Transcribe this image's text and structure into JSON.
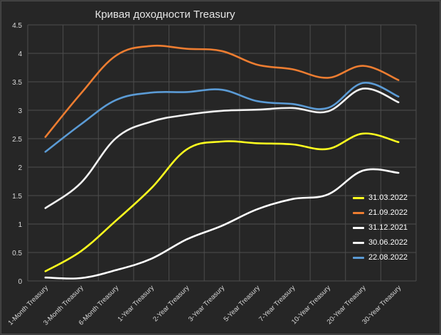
{
  "chart_data": {
    "type": "line",
    "title": "Кривая доходности Treasury",
    "categories": [
      "1-Month Treasury",
      "3-Month Treasury",
      "6-Month Treasury",
      "1-Year Treasury",
      "2-Year Treasury",
      "3-Year Treasury",
      "5-Year Treasury",
      "7-Year Treasury",
      "10-Year Treasury",
      "20-Year Treasury",
      "30-Year Treasury"
    ],
    "ylim": [
      0,
      4.5
    ],
    "yticks": [
      "0",
      "0.5",
      "1",
      "1.5",
      "2",
      "2.5",
      "3",
      "3.5",
      "4",
      "4.5"
    ],
    "grid": true,
    "legend_position": "bottom-right",
    "series": [
      {
        "name": "31.03.2022",
        "color": "#ffff1f",
        "values": [
          0.17,
          0.52,
          1.06,
          1.63,
          2.31,
          2.45,
          2.42,
          2.4,
          2.32,
          2.59,
          2.44
        ]
      },
      {
        "name": "21.09.2022",
        "color": "#ed7d31",
        "values": [
          2.53,
          3.29,
          3.96,
          4.13,
          4.08,
          4.04,
          3.8,
          3.72,
          3.57,
          3.78,
          3.53
        ]
      },
      {
        "name": "31.12.2021",
        "color": "#ffffff",
        "values": [
          0.06,
          0.05,
          0.19,
          0.39,
          0.73,
          0.97,
          1.26,
          1.44,
          1.52,
          1.94,
          1.9
        ]
      },
      {
        "name": "30.06.2022",
        "color": "#f2f2f2",
        "values": [
          1.28,
          1.72,
          2.51,
          2.8,
          2.92,
          2.99,
          3.01,
          3.04,
          2.98,
          3.38,
          3.14
        ]
      },
      {
        "name": "22.08.2022",
        "color": "#5b9bd5",
        "values": [
          2.27,
          2.75,
          3.18,
          3.31,
          3.32,
          3.36,
          3.16,
          3.11,
          3.04,
          3.48,
          3.24
        ]
      }
    ]
  }
}
